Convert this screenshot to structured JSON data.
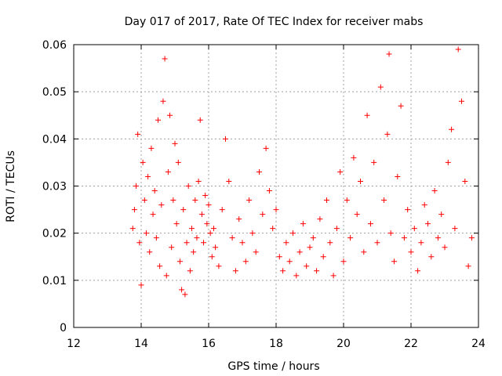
{
  "chart_data": {
    "type": "scatter",
    "title": "Day 017 of 2017, Rate Of TEC Index for receiver mabs",
    "xlabel": "GPS time / hours",
    "ylabel": "ROTI / TECUs",
    "xlim": [
      12,
      24
    ],
    "ylim": [
      0,
      0.06
    ],
    "x_ticks": [
      "12",
      "14",
      "16",
      "18",
      "20",
      "22",
      "24"
    ],
    "y_ticks": [
      "0",
      "0.01",
      "0.02",
      "0.03",
      "0.04",
      "0.05",
      "0.06"
    ],
    "grid": true,
    "marker": "+",
    "color": "#ff0000",
    "point_density_note_free": true,
    "series": [
      {
        "values": [
          [
            13.75,
            0.021
          ],
          [
            13.8,
            0.025
          ],
          [
            13.85,
            0.03
          ],
          [
            13.9,
            0.041
          ],
          [
            13.95,
            0.018
          ],
          [
            14.0,
            0.009
          ],
          [
            14.05,
            0.035
          ],
          [
            14.1,
            0.027
          ],
          [
            14.15,
            0.02
          ],
          [
            14.2,
            0.032
          ],
          [
            14.25,
            0.016
          ],
          [
            14.3,
            0.038
          ],
          [
            14.35,
            0.024
          ],
          [
            14.4,
            0.029
          ],
          [
            14.45,
            0.019
          ],
          [
            14.5,
            0.044
          ],
          [
            14.55,
            0.013
          ],
          [
            14.6,
            0.026
          ],
          [
            14.65,
            0.048
          ],
          [
            14.7,
            0.057
          ],
          [
            14.75,
            0.011
          ],
          [
            14.8,
            0.033
          ],
          [
            14.85,
            0.045
          ],
          [
            14.9,
            0.017
          ],
          [
            14.95,
            0.027
          ],
          [
            15.0,
            0.039
          ],
          [
            15.05,
            0.022
          ],
          [
            15.1,
            0.035
          ],
          [
            15.15,
            0.014
          ],
          [
            15.2,
            0.008
          ],
          [
            15.25,
            0.025
          ],
          [
            15.3,
            0.007
          ],
          [
            15.35,
            0.018
          ],
          [
            15.4,
            0.03
          ],
          [
            15.45,
            0.012
          ],
          [
            15.5,
            0.021
          ],
          [
            15.55,
            0.016
          ],
          [
            15.6,
            0.027
          ],
          [
            15.65,
            0.019
          ],
          [
            15.7,
            0.031
          ],
          [
            15.75,
            0.044
          ],
          [
            15.8,
            0.024
          ],
          [
            15.85,
            0.018
          ],
          [
            15.9,
            0.028
          ],
          [
            15.95,
            0.022
          ],
          [
            16.0,
            0.026
          ],
          [
            16.05,
            0.02
          ],
          [
            16.1,
            0.015
          ],
          [
            16.15,
            0.021
          ],
          [
            16.2,
            0.017
          ],
          [
            16.3,
            0.013
          ],
          [
            16.4,
            0.025
          ],
          [
            16.5,
            0.04
          ],
          [
            16.6,
            0.031
          ],
          [
            16.7,
            0.019
          ],
          [
            16.8,
            0.012
          ],
          [
            16.9,
            0.023
          ],
          [
            17.0,
            0.018
          ],
          [
            17.1,
            0.014
          ],
          [
            17.2,
            0.027
          ],
          [
            17.3,
            0.02
          ],
          [
            17.4,
            0.016
          ],
          [
            17.5,
            0.033
          ],
          [
            17.6,
            0.024
          ],
          [
            17.7,
            0.038
          ],
          [
            17.8,
            0.029
          ],
          [
            17.9,
            0.021
          ],
          [
            18.0,
            0.025
          ],
          [
            18.1,
            0.015
          ],
          [
            18.2,
            0.012
          ],
          [
            18.3,
            0.018
          ],
          [
            18.4,
            0.014
          ],
          [
            18.5,
            0.02
          ],
          [
            18.6,
            0.011
          ],
          [
            18.7,
            0.016
          ],
          [
            18.8,
            0.022
          ],
          [
            18.9,
            0.013
          ],
          [
            19.0,
            0.017
          ],
          [
            19.1,
            0.019
          ],
          [
            19.2,
            0.012
          ],
          [
            19.3,
            0.023
          ],
          [
            19.4,
            0.015
          ],
          [
            19.5,
            0.027
          ],
          [
            19.6,
            0.018
          ],
          [
            19.7,
            0.011
          ],
          [
            19.8,
            0.021
          ],
          [
            19.9,
            0.033
          ],
          [
            20.0,
            0.014
          ],
          [
            20.1,
            0.027
          ],
          [
            20.2,
            0.019
          ],
          [
            20.3,
            0.036
          ],
          [
            20.4,
            0.024
          ],
          [
            20.5,
            0.031
          ],
          [
            20.6,
            0.016
          ],
          [
            20.7,
            0.045
          ],
          [
            20.8,
            0.022
          ],
          [
            20.9,
            0.035
          ],
          [
            21.0,
            0.018
          ],
          [
            21.1,
            0.051
          ],
          [
            21.2,
            0.027
          ],
          [
            21.3,
            0.041
          ],
          [
            21.35,
            0.058
          ],
          [
            21.4,
            0.02
          ],
          [
            21.5,
            0.014
          ],
          [
            21.6,
            0.032
          ],
          [
            21.7,
            0.047
          ],
          [
            21.8,
            0.019
          ],
          [
            21.9,
            0.025
          ],
          [
            22.0,
            0.016
          ],
          [
            22.1,
            0.021
          ],
          [
            22.2,
            0.012
          ],
          [
            22.3,
            0.018
          ],
          [
            22.4,
            0.026
          ],
          [
            22.5,
            0.022
          ],
          [
            22.6,
            0.015
          ],
          [
            22.7,
            0.029
          ],
          [
            22.8,
            0.019
          ],
          [
            22.9,
            0.024
          ],
          [
            23.0,
            0.017
          ],
          [
            23.1,
            0.035
          ],
          [
            23.2,
            0.042
          ],
          [
            23.3,
            0.021
          ],
          [
            23.4,
            0.059
          ],
          [
            23.5,
            0.048
          ],
          [
            23.6,
            0.031
          ],
          [
            23.7,
            0.013
          ],
          [
            23.8,
            0.019
          ]
        ]
      }
    ]
  }
}
